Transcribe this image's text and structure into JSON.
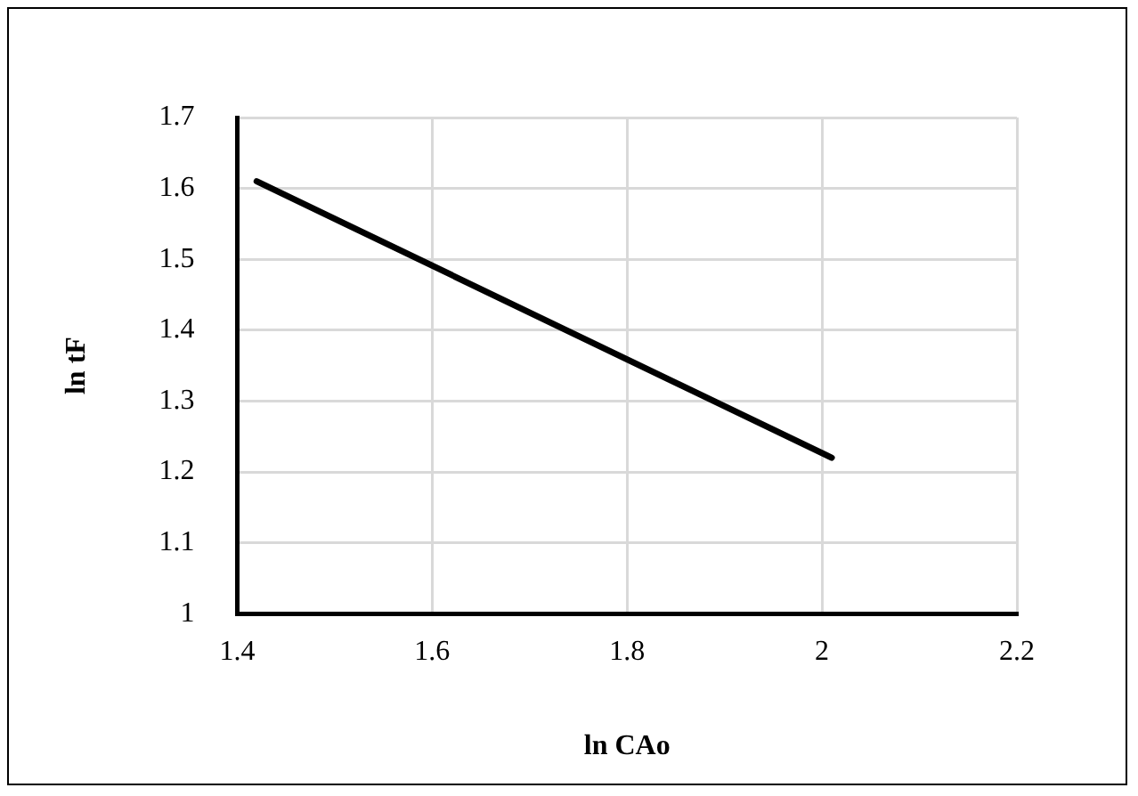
{
  "chart_data": {
    "type": "line",
    "xlabel": "ln CAo",
    "ylabel": "ln tF",
    "x": [
      1.42,
      2.01
    ],
    "series": [
      {
        "color": "#000000",
        "values": [
          1.61,
          1.22
        ]
      }
    ],
    "xlim": [
      1.4,
      2.2
    ],
    "xticks": [
      1.4,
      1.6,
      1.8,
      2,
      2.2
    ],
    "ylim": [
      1,
      1.7
    ],
    "yticks": [
      1,
      1.1,
      1.2,
      1.3,
      1.4,
      1.5,
      1.6,
      1.7
    ],
    "grid": true,
    "legend": false,
    "marker": "none",
    "line_style": "solid"
  }
}
